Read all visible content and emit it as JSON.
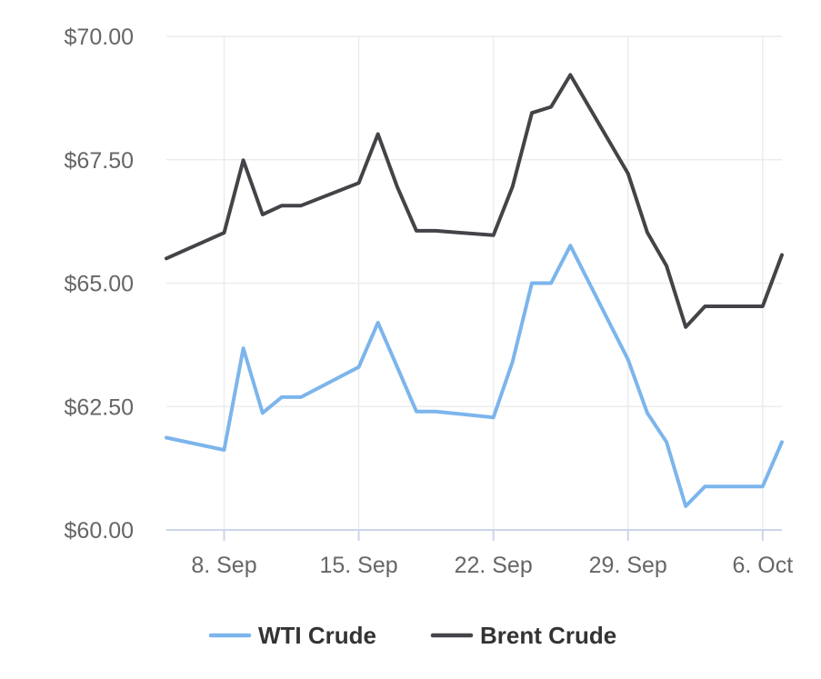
{
  "chart_data": {
    "type": "line",
    "title": "",
    "xlabel": "",
    "ylabel": "",
    "ylim": [
      60,
      70
    ],
    "yticks": [
      60,
      62.5,
      65,
      67.5,
      70
    ],
    "ytick_labels": [
      "$60.00",
      "$62.50",
      "$65.00",
      "$67.50",
      "$70.00"
    ],
    "xlim": [
      "2025-09-05",
      "2025-10-07"
    ],
    "xticks": [
      "2025-09-08",
      "2025-09-15",
      "2025-09-22",
      "2025-09-29",
      "2025-10-06"
    ],
    "xtick_labels": [
      "8. Sep",
      "15. Sep",
      "22. Sep",
      "29. Sep",
      "6. Oct"
    ],
    "grid": true,
    "legend_position": "bottom-center",
    "x": [
      "2025-09-05",
      "2025-09-08",
      "2025-09-09",
      "2025-09-10",
      "2025-09-11",
      "2025-09-12",
      "2025-09-15",
      "2025-09-16",
      "2025-09-17",
      "2025-09-18",
      "2025-09-19",
      "2025-09-22",
      "2025-09-23",
      "2025-09-24",
      "2025-09-25",
      "2025-09-26",
      "2025-09-29",
      "2025-09-30",
      "2025-10-01",
      "2025-10-02",
      "2025-10-03",
      "2025-10-06",
      "2025-10-07"
    ],
    "series": [
      {
        "name": "WTI Crude",
        "color": "#7cb5ec",
        "values": [
          61.87,
          61.62,
          63.68,
          62.37,
          62.69,
          62.69,
          63.3,
          64.2,
          63.3,
          62.4,
          62.4,
          62.28,
          63.41,
          65.0,
          65.0,
          65.76,
          63.45,
          62.37,
          61.78,
          60.48,
          60.88,
          60.88,
          61.78
        ]
      },
      {
        "name": "Brent Crude",
        "color": "#434348",
        "values": [
          65.5,
          66.02,
          67.49,
          66.39,
          66.57,
          66.57,
          67.03,
          68.02,
          66.95,
          66.06,
          66.06,
          65.97,
          66.96,
          68.45,
          68.57,
          69.22,
          67.22,
          66.03,
          65.35,
          64.11,
          64.53,
          64.53,
          65.57
        ]
      }
    ]
  },
  "style": {
    "grid_color": "#ececec",
    "axis_color": "#ccd6eb"
  }
}
